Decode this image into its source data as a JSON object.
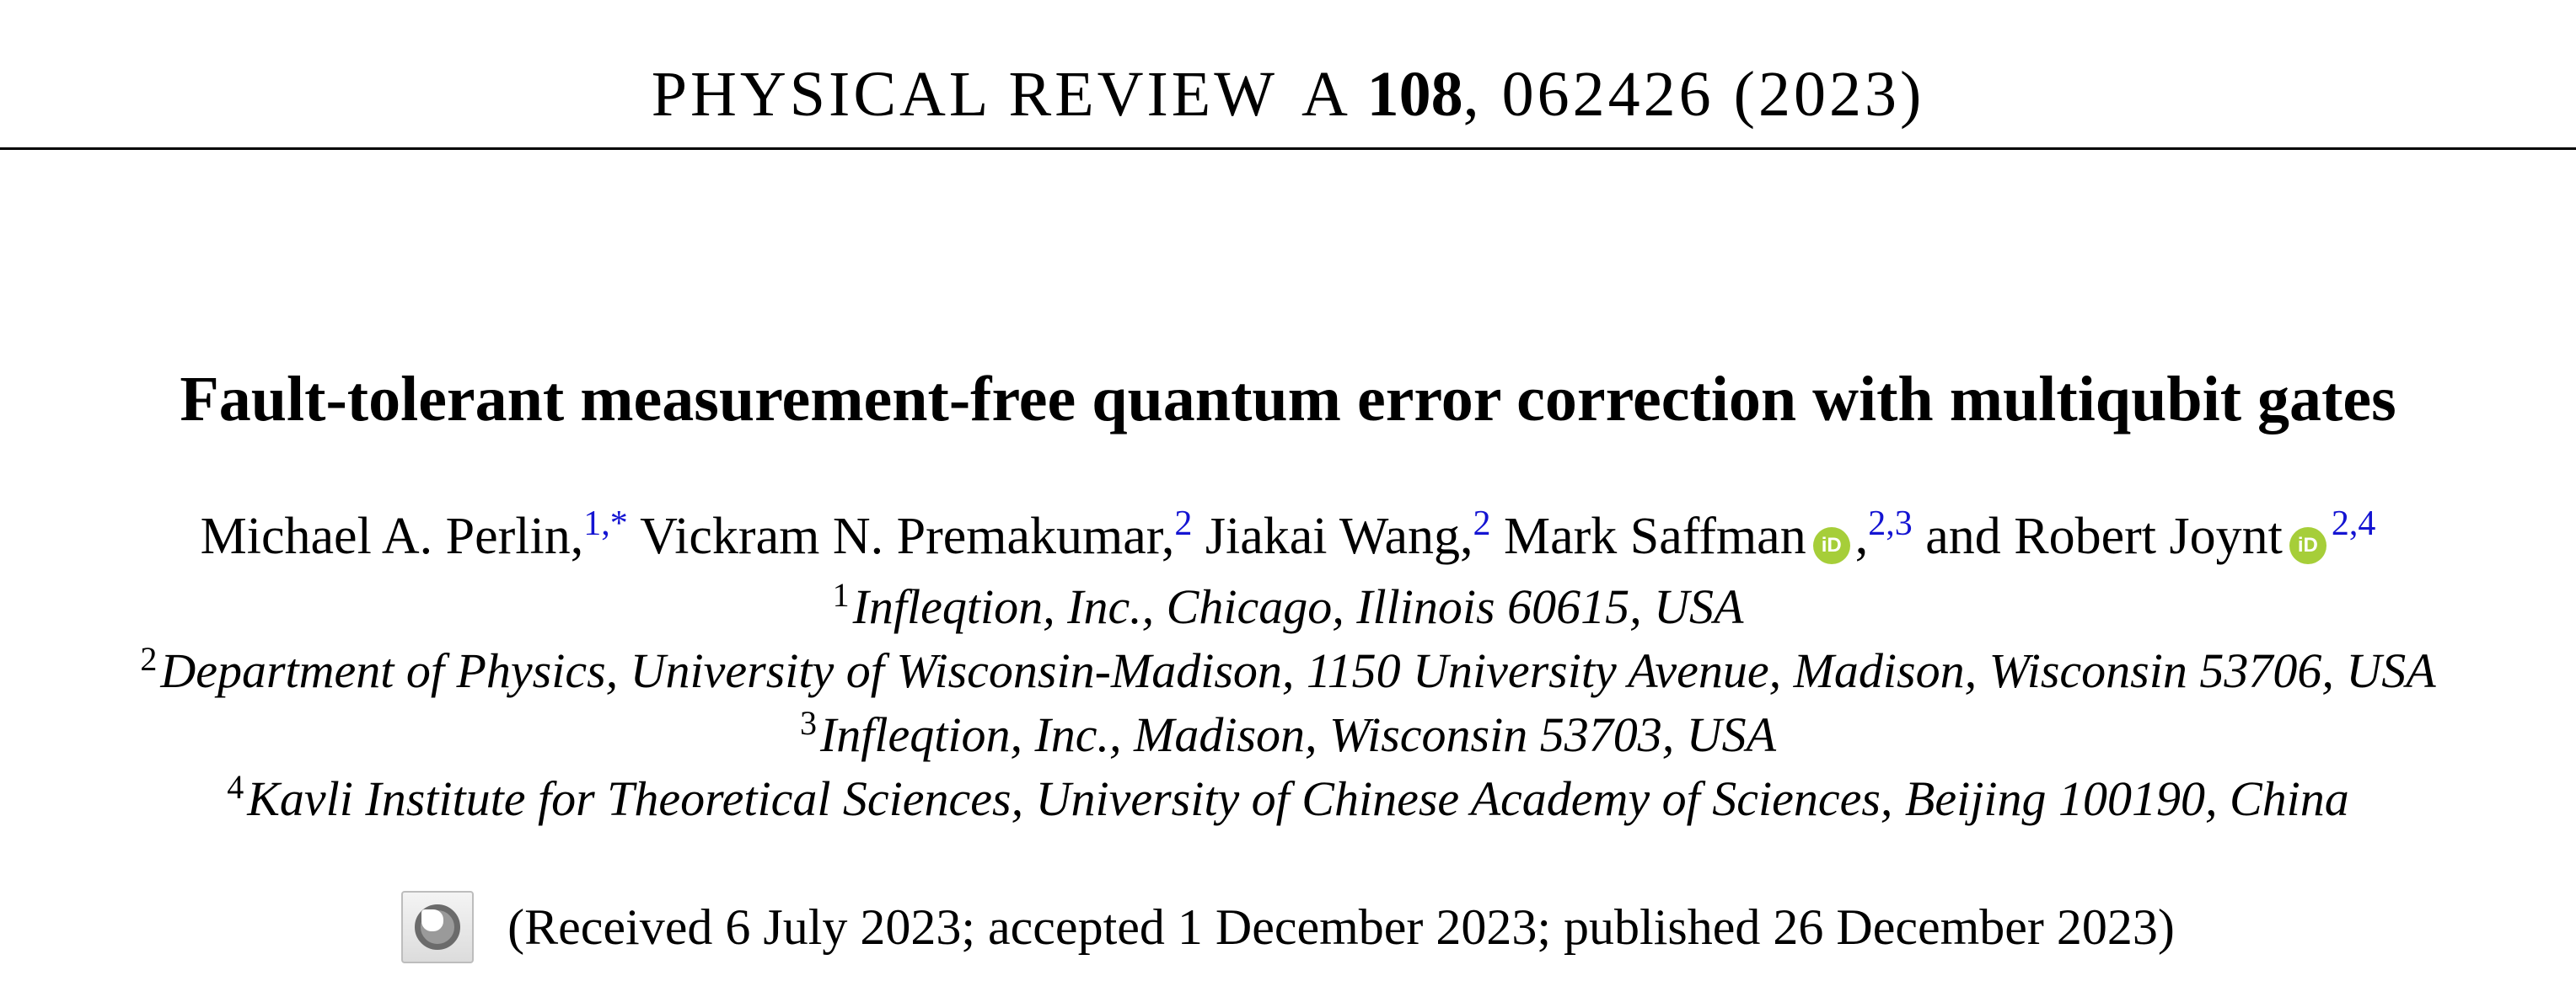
{
  "header": {
    "journal": "PHYSICAL REVIEW",
    "section": "A",
    "volume": "108",
    "article_and_year": ", 062426 (2023)"
  },
  "title": "Fault-tolerant measurement-free quantum error correction with multiqubit gates",
  "authors": [
    {
      "name": "Michael A. Perlin,",
      "affiliations": "1,*",
      "orcid": false
    },
    {
      "name": "Vickram N. Premakumar,",
      "affiliations": "2",
      "orcid": false
    },
    {
      "name": "Jiakai Wang,",
      "affiliations": "2",
      "orcid": false
    },
    {
      "name": "Mark Saffman",
      "after_orcid": ",",
      "affiliations": "2,3",
      "orcid": true
    },
    {
      "name": "and Robert Joynt",
      "affiliations": "2,4",
      "orcid": true
    }
  ],
  "orcid_badge_text": "iD",
  "affiliations": [
    {
      "num": "1",
      "text": "Infleqtion, Inc., Chicago, Illinois 60615, USA"
    },
    {
      "num": "2",
      "text": "Department of Physics, University of Wisconsin-Madison, 1150 University Avenue, Madison, Wisconsin 53706, USA"
    },
    {
      "num": "3",
      "text": "Infleqtion, Inc., Madison, Wisconsin 53703, USA"
    },
    {
      "num": "4",
      "text": "Kavli Institute for Theoretical Sciences, University of Chinese Academy of Sciences, Beijing 100190, China"
    }
  ],
  "received": "(Received 6 July 2023; accepted 1 December 2023; published 26 December 2023)",
  "colors": {
    "affiliation_link": "#1414d2",
    "orcid": "#a6ce39"
  },
  "icons": {
    "orcid": "orcid-icon",
    "check_for_updates": "check-for-updates-icon"
  }
}
